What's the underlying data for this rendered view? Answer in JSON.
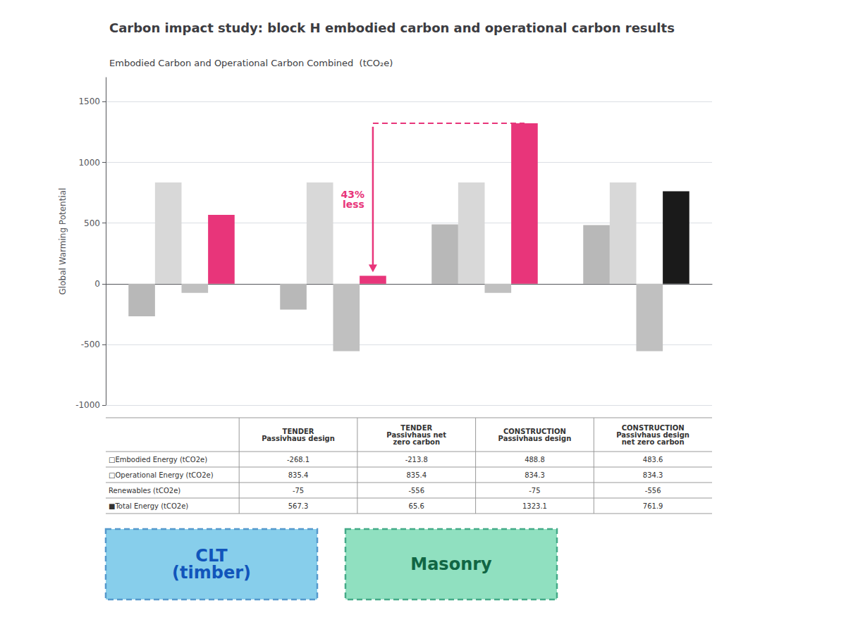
{
  "chart_data": {
    "type": "bar",
    "title": "Carbon impact study: block H embodied carbon and operational carbon results",
    "subtitle": "Embodied Carbon and Operational Carbon Combined  (tCO₂e)",
    "ylabel": "Global Warming Potential",
    "categories": [
      "TENDER\nPassivhaus design",
      "TENDER\nPassivhaus net\nzero carbon",
      "CONSTRUCTION\nPassivhaus design",
      "CONSTRUCTION\nPassivhaus design\nnet zero carbon"
    ],
    "series": [
      {
        "name": "□Embodied Energy (tCO2e)",
        "color": "#b8b8b8",
        "values": [
          -268.1,
          -213.8,
          488.8,
          483.6
        ]
      },
      {
        "name": "□Operational Energy (tCO2e)",
        "color": "#d8d8d8",
        "values": [
          835.4,
          835.4,
          834.3,
          834.3
        ]
      },
      {
        "name": "Renewables (tCO2e)",
        "color": "#c0c0c0",
        "values": [
          -75,
          -556,
          -75,
          -556
        ]
      },
      {
        "name": "■Total Energy (tCO2e)",
        "colors": [
          "#e8357a",
          "#e8357a",
          "#e8357a",
          "#1a1a1a"
        ],
        "values": [
          567.3,
          65.6,
          1323.1,
          761.9
        ]
      }
    ],
    "ylim": [
      -1000,
      1700
    ],
    "yticks": [
      -1000,
      -500,
      0,
      500,
      1000,
      1500
    ],
    "grid": true,
    "tick_labels": "y",
    "annotations": [
      {
        "text": "43%\nless",
        "color": "#e8357a",
        "y": 1323.1,
        "series": "■Total Energy (tCO2e)",
        "from": "TENDER\nPassivhaus net\nzero carbon",
        "to": "CONSTRUCTION\nPassivhaus design"
      },
      {
        "text": "CLT\n(timber)",
        "color": "#1155bb",
        "background": "#87ceeb",
        "border": "#5599cc"
      },
      {
        "text": "Masonry",
        "color": "#116644",
        "background": "#90e0c0",
        "border": "#44aa88"
      }
    ]
  }
}
